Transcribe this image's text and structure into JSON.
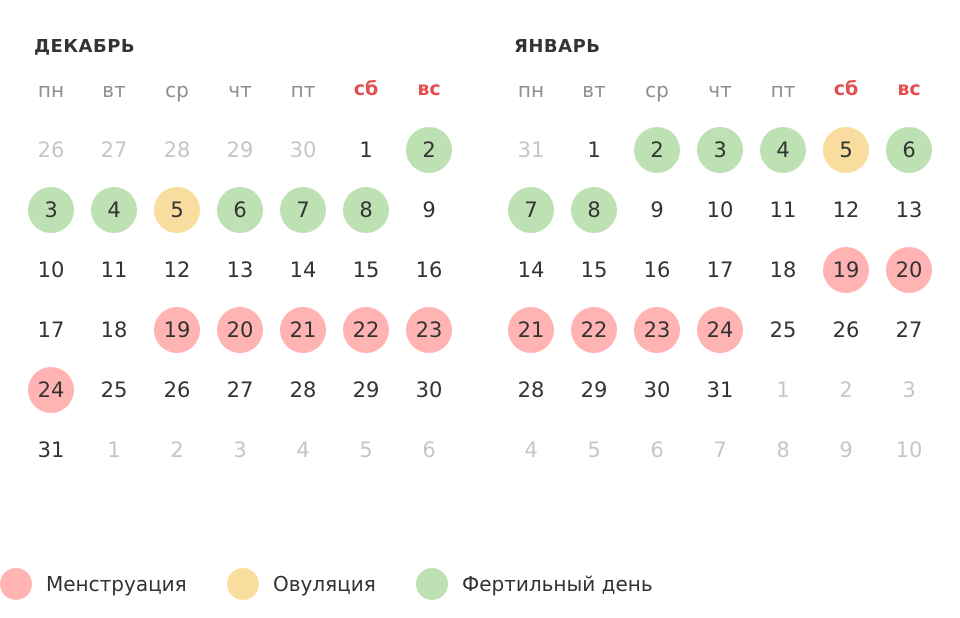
{
  "weekdays": [
    "пн",
    "вт",
    "ср",
    "чт",
    "пт",
    "сб",
    "вс"
  ],
  "weekend_color": "#e3504f",
  "colors": {
    "menstruation": "#ffb3b3",
    "ovulation": "#f8dd9f",
    "fertile": "#bde1b3",
    "text": "#333333",
    "other_month_text": "#c6c6c6"
  },
  "months": [
    {
      "title": "ДЕКАБРЬ",
      "weeks": [
        [
          {
            "d": "26",
            "o": 1
          },
          {
            "d": "27",
            "o": 1
          },
          {
            "d": "28",
            "o": 1
          },
          {
            "d": "29",
            "o": 1
          },
          {
            "d": "30",
            "o": 1
          },
          {
            "d": "1"
          },
          {
            "d": "2",
            "t": "fertile"
          }
        ],
        [
          {
            "d": "3",
            "t": "fertile"
          },
          {
            "d": "4",
            "t": "fertile"
          },
          {
            "d": "5",
            "t": "ovulation"
          },
          {
            "d": "6",
            "t": "fertile"
          },
          {
            "d": "7",
            "t": "fertile"
          },
          {
            "d": "8",
            "t": "fertile"
          },
          {
            "d": "9"
          }
        ],
        [
          {
            "d": "10"
          },
          {
            "d": "11"
          },
          {
            "d": "12"
          },
          {
            "d": "13"
          },
          {
            "d": "14"
          },
          {
            "d": "15"
          },
          {
            "d": "16"
          }
        ],
        [
          {
            "d": "17"
          },
          {
            "d": "18"
          },
          {
            "d": "19",
            "t": "menstruation"
          },
          {
            "d": "20",
            "t": "menstruation"
          },
          {
            "d": "21",
            "t": "menstruation"
          },
          {
            "d": "22",
            "t": "menstruation"
          },
          {
            "d": "23",
            "t": "menstruation"
          }
        ],
        [
          {
            "d": "24",
            "t": "menstruation"
          },
          {
            "d": "25"
          },
          {
            "d": "26"
          },
          {
            "d": "27"
          },
          {
            "d": "28"
          },
          {
            "d": "29"
          },
          {
            "d": "30"
          }
        ],
        [
          {
            "d": "31"
          },
          {
            "d": "1",
            "o": 1
          },
          {
            "d": "2",
            "o": 1
          },
          {
            "d": "3",
            "o": 1
          },
          {
            "d": "4",
            "o": 1
          },
          {
            "d": "5",
            "o": 1
          },
          {
            "d": "6",
            "o": 1
          }
        ]
      ]
    },
    {
      "title": "ЯНВАРЬ",
      "weeks": [
        [
          {
            "d": "31",
            "o": 1
          },
          {
            "d": "1"
          },
          {
            "d": "2",
            "t": "fertile"
          },
          {
            "d": "3",
            "t": "fertile"
          },
          {
            "d": "4",
            "t": "fertile"
          },
          {
            "d": "5",
            "t": "ovulation"
          },
          {
            "d": "6",
            "t": "fertile"
          }
        ],
        [
          {
            "d": "7",
            "t": "fertile"
          },
          {
            "d": "8",
            "t": "fertile"
          },
          {
            "d": "9"
          },
          {
            "d": "10"
          },
          {
            "d": "11"
          },
          {
            "d": "12"
          },
          {
            "d": "13"
          }
        ],
        [
          {
            "d": "14"
          },
          {
            "d": "15"
          },
          {
            "d": "16"
          },
          {
            "d": "17"
          },
          {
            "d": "18"
          },
          {
            "d": "19",
            "t": "menstruation"
          },
          {
            "d": "20",
            "t": "menstruation"
          }
        ],
        [
          {
            "d": "21",
            "t": "menstruation"
          },
          {
            "d": "22",
            "t": "menstruation"
          },
          {
            "d": "23",
            "t": "menstruation"
          },
          {
            "d": "24",
            "t": "menstruation"
          },
          {
            "d": "25"
          },
          {
            "d": "26"
          },
          {
            "d": "27"
          }
        ],
        [
          {
            "d": "28"
          },
          {
            "d": "29"
          },
          {
            "d": "30"
          },
          {
            "d": "31"
          },
          {
            "d": "1",
            "o": 1
          },
          {
            "d": "2",
            "o": 1
          },
          {
            "d": "3",
            "o": 1
          }
        ],
        [
          {
            "d": "4",
            "o": 1
          },
          {
            "d": "5",
            "o": 1
          },
          {
            "d": "6",
            "o": 1
          },
          {
            "d": "7",
            "o": 1
          },
          {
            "d": "8",
            "o": 1
          },
          {
            "d": "9",
            "o": 1
          },
          {
            "d": "10",
            "o": 1
          }
        ]
      ]
    }
  ],
  "legend": [
    {
      "label": "Менструация",
      "type": "menstruation"
    },
    {
      "label": "Овуляция",
      "type": "ovulation"
    },
    {
      "label": "Фертильный день",
      "type": "fertile"
    }
  ]
}
